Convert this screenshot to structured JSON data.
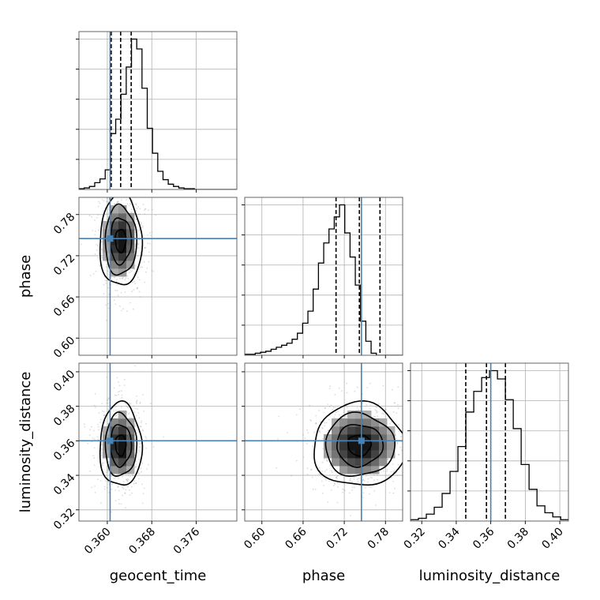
{
  "chart_data": {
    "type": "corner",
    "parameters": [
      "geocent_time",
      "phase",
      "luminosity_distance"
    ],
    "truths": {
      "geocent_time": 0.3605,
      "phase": 0.745,
      "luminosity_distance": 0.36
    },
    "quantiles": {
      "geocent_time": [
        0.3607,
        0.3624,
        0.3643
      ],
      "phase": [
        0.708,
        0.742,
        0.772
      ],
      "luminosity_distance": [
        0.3455,
        0.3575,
        0.3685
      ]
    },
    "ranges": {
      "geocent_time": [
        0.3549,
        0.3833
      ],
      "phase": [
        0.575,
        0.805
      ],
      "luminosity_distance": [
        0.3135,
        0.405
      ]
    },
    "ticks": {
      "geocent_time": [
        "0.360",
        "0.368",
        "0.376"
      ],
      "phase": [
        "0.60",
        "0.66",
        "0.72",
        "0.78"
      ],
      "luminosity_distance": [
        "0.32",
        "0.34",
        "0.36",
        "0.38",
        "0.40"
      ]
    },
    "labels": {
      "geocent_time": "geocent_time",
      "phase": "phase",
      "luminosity_distance": "luminosity_distance"
    },
    "histograms": {
      "geocent_time": {
        "start": 0.3549,
        "width": 0.000945,
        "counts": [
          1,
          2,
          4,
          9,
          14,
          26,
          74,
          93,
          126,
          162,
          199,
          186,
          134,
          81,
          48,
          24,
          13,
          7,
          4,
          2,
          1,
          1,
          0,
          0,
          0,
          0,
          0,
          0,
          0,
          0
        ]
      },
      "phase": {
        "start": 0.575,
        "width": 0.00767,
        "counts": [
          0.5,
          0.5,
          1,
          1.5,
          2,
          3,
          4,
          5,
          6,
          8,
          11,
          16,
          22,
          33,
          46,
          56,
          63,
          69,
          75,
          61,
          49,
          35,
          17,
          7,
          1,
          0,
          0,
          0,
          0,
          0
        ]
      },
      "luminosity_distance": {
        "start": 0.3135,
        "width": 0.00458,
        "counts": [
          1,
          2,
          5,
          10,
          20,
          36,
          54,
          79,
          94,
          104,
          109,
          103,
          88,
          67,
          41,
          23,
          11,
          6,
          3,
          1
        ]
      }
    },
    "grid": true
  }
}
